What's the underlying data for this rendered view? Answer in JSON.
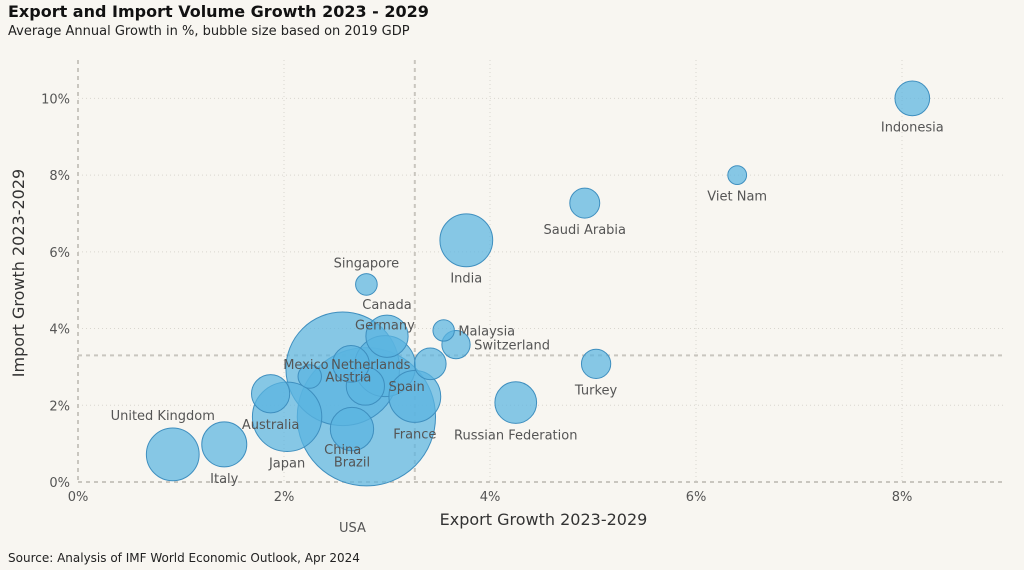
{
  "header": {
    "title": "Export and Import Volume Growth 2023 - 2029",
    "subtitle": "Average Annual Growth in %, bubble size based on 2019 GDP"
  },
  "footer": {
    "source": "Source: Analysis of IMF World Economic Outlook, Apr 2024"
  },
  "chart_data": {
    "type": "scatter",
    "title": "Export and Import Volume Growth 2023 - 2029",
    "subtitle": "Average Annual Growth in %, bubble size based on 2019 GDP",
    "xlabel": "Export Growth 2023-2029",
    "ylabel": "Import Growth 2023-2029",
    "xlim": [
      0,
      9
    ],
    "ylim": [
      0,
      11
    ],
    "x_ticks": [
      "0%",
      "2%",
      "4%",
      "6%",
      "8%"
    ],
    "y_ticks": [
      "0%",
      "2%",
      "4%",
      "6%",
      "8%",
      "10%"
    ],
    "x_tick_values": [
      0,
      2,
      4,
      6,
      8
    ],
    "y_tick_values": [
      0,
      2,
      4,
      6,
      8,
      10
    ],
    "average_lines": {
      "x": 3.27,
      "y": 3.3
    },
    "grid": true,
    "bubble_color": "#5ab4e0",
    "bubble_stroke": "#3f8fbf",
    "points": [
      {
        "name": "Indonesia",
        "x": 8.1,
        "y": 10.0,
        "gdp": 1.12,
        "label_pos": "below"
      },
      {
        "name": "Viet Nam",
        "x": 6.4,
        "y": 8.0,
        "gdp": 0.26,
        "label_pos": "below"
      },
      {
        "name": "Saudi Arabia",
        "x": 4.92,
        "y": 7.27,
        "gdp": 0.8,
        "label_pos": "below"
      },
      {
        "name": "India",
        "x": 3.77,
        "y": 6.3,
        "gdp": 2.83,
        "label_pos": "below"
      },
      {
        "name": "Singapore",
        "x": 2.8,
        "y": 5.15,
        "gdp": 0.37,
        "label_pos": "above"
      },
      {
        "name": "Malaysia",
        "x": 3.55,
        "y": 3.95,
        "gdp": 0.36,
        "label_pos": "right"
      },
      {
        "name": "Switzerland",
        "x": 3.67,
        "y": 3.58,
        "gdp": 0.7,
        "label_pos": "right"
      },
      {
        "name": "Canada",
        "x": 3.0,
        "y": 3.8,
        "gdp": 1.74,
        "label_pos": "above"
      },
      {
        "name": "Germany",
        "x": 2.98,
        "y": 3.02,
        "gdp": 3.86,
        "label_pos": "above"
      },
      {
        "name": "Netherlands",
        "x": 3.42,
        "y": 3.08,
        "gdp": 0.91,
        "label_pos": "left"
      },
      {
        "name": "Mexico",
        "x": 2.65,
        "y": 3.08,
        "gdp": 1.27,
        "label_pos": "left"
      },
      {
        "name": "Turkey",
        "x": 5.03,
        "y": 3.08,
        "gdp": 0.76,
        "label_pos": "below"
      },
      {
        "name": "Austria",
        "x": 2.25,
        "y": 2.75,
        "gdp": 0.45,
        "label_pos": "right"
      },
      {
        "name": "Spain",
        "x": 2.79,
        "y": 2.5,
        "gdp": 1.39,
        "label_pos": "right"
      },
      {
        "name": "Australia",
        "x": 1.87,
        "y": 2.3,
        "gdp": 1.39,
        "label_pos": "below"
      },
      {
        "name": "France",
        "x": 3.27,
        "y": 2.23,
        "gdp": 2.72,
        "label_pos": "below"
      },
      {
        "name": "Russian Federation",
        "x": 4.25,
        "y": 2.07,
        "gdp": 1.69,
        "label_pos": "below"
      },
      {
        "name": "Japan",
        "x": 2.03,
        "y": 1.7,
        "gdp": 5.08,
        "label_pos": "below"
      },
      {
        "name": "China",
        "x": 2.57,
        "y": 2.95,
        "gdp": 14.28,
        "label_pos": "below-far"
      },
      {
        "name": "Brazil",
        "x": 2.66,
        "y": 1.38,
        "gdp": 1.84,
        "label_pos": "below"
      },
      {
        "name": "USA",
        "x": 2.8,
        "y": 1.7,
        "gdp": 21.43,
        "label_pos": "below-usa"
      },
      {
        "name": "United Kingdom",
        "x": 0.92,
        "y": 0.72,
        "gdp": 2.83,
        "label_pos": "above-ul"
      },
      {
        "name": "Italy",
        "x": 1.42,
        "y": 0.98,
        "gdp": 2.0,
        "label_pos": "below"
      }
    ]
  }
}
